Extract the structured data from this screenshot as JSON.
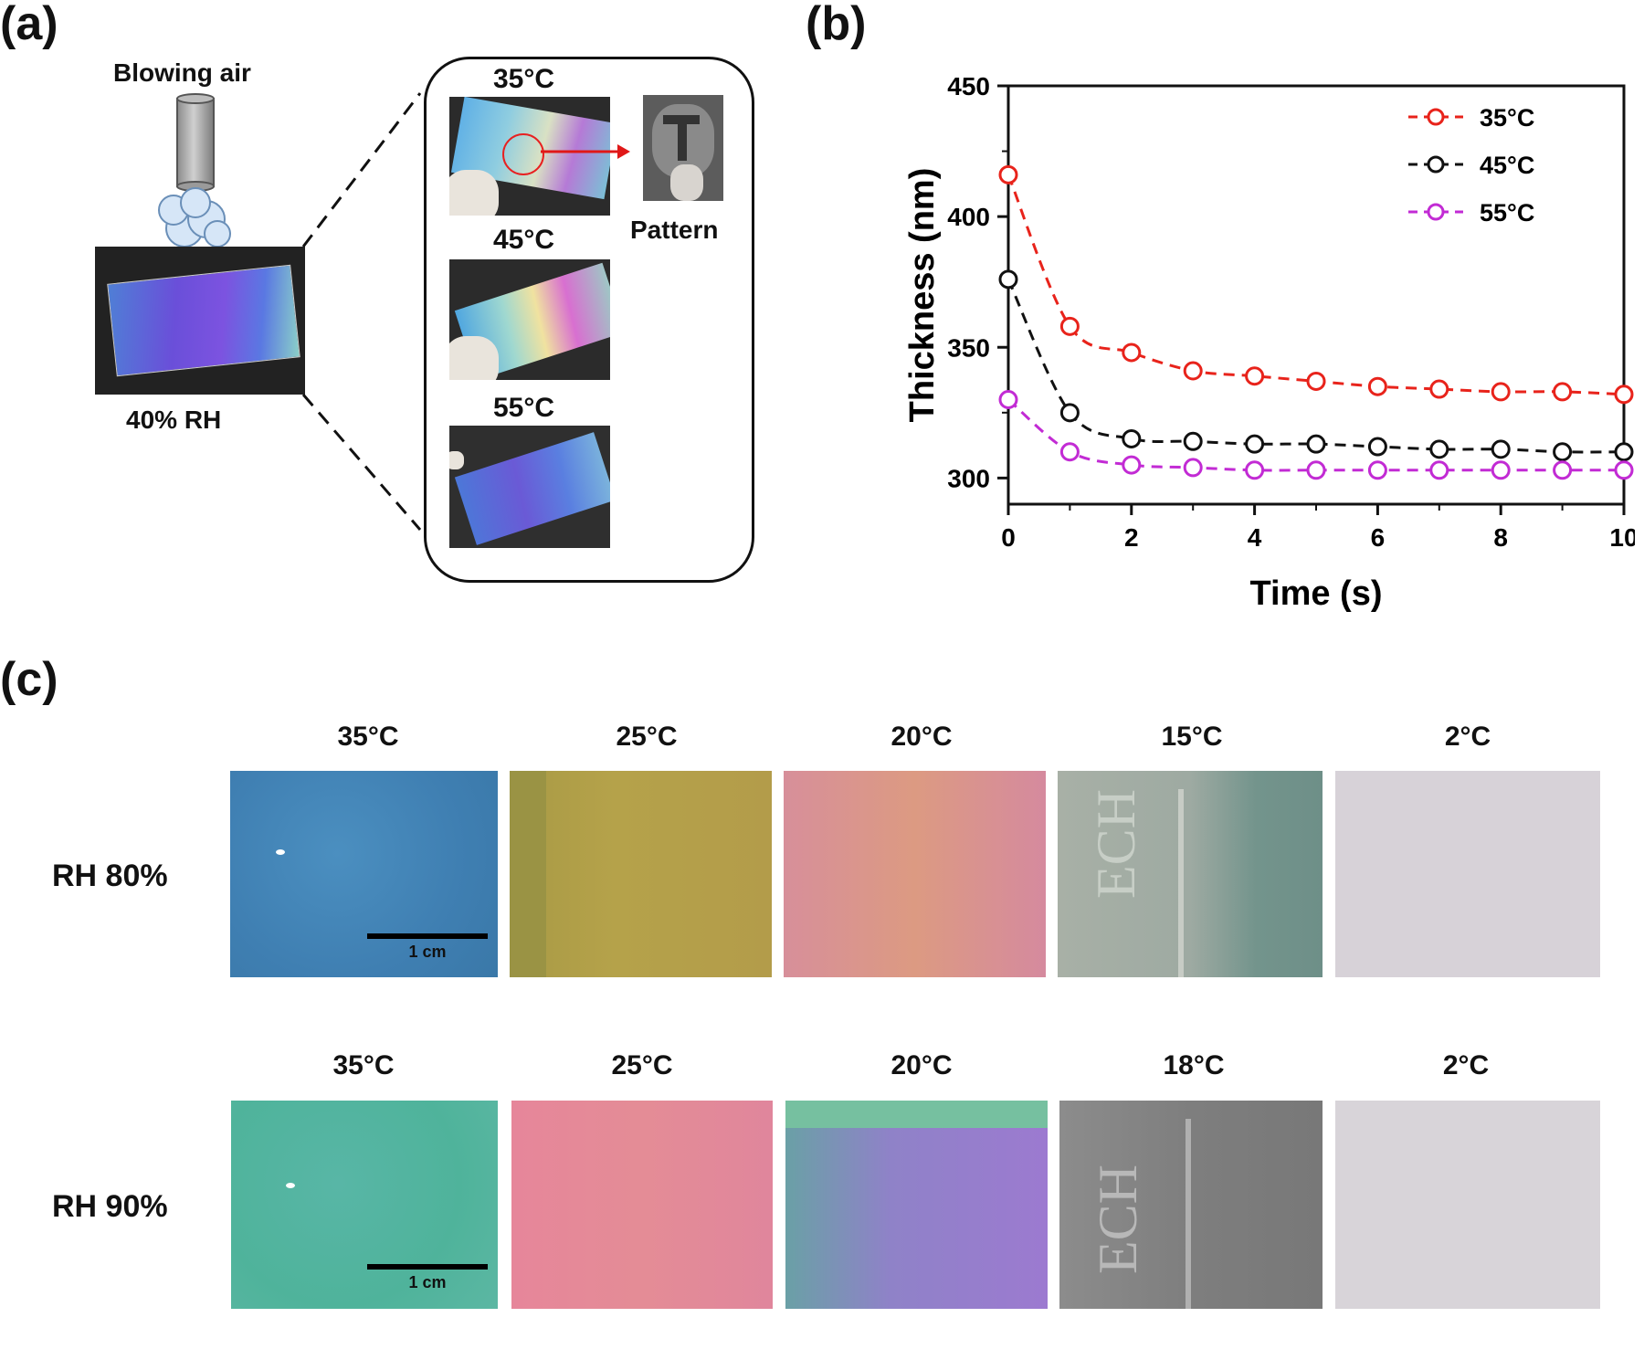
{
  "panel_a": {
    "label": "(a)",
    "blowing_air": "Blowing air",
    "rh_label": "40% RH",
    "temps": [
      "35°C",
      "45°C",
      "55°C"
    ],
    "pattern_label": "Pattern"
  },
  "panel_b": {
    "label": "(b)"
  },
  "panel_c": {
    "label": "(c)",
    "row1": {
      "rh": "RH 80%",
      "temps": [
        "35°C",
        "25°C",
        "20°C",
        "15°C",
        "2°C"
      ]
    },
    "row2": {
      "rh": "RH 90%",
      "temps": [
        "35°C",
        "25°C",
        "20°C",
        "18°C",
        "2°C"
      ]
    },
    "scale_bar": "1 cm"
  },
  "chart_data": {
    "type": "line",
    "xlabel": "Time (s)",
    "ylabel": "Thickness (nm)",
    "xlim": [
      0,
      10
    ],
    "ylim": [
      290,
      450
    ],
    "xticks": [
      0,
      2,
      4,
      6,
      8,
      10
    ],
    "yticks": [
      300,
      350,
      400,
      450
    ],
    "legend_position": "top-right",
    "x": [
      0,
      1,
      2,
      3,
      4,
      5,
      6,
      7,
      8,
      9,
      10
    ],
    "series": [
      {
        "name": "35°C",
        "color": "#e8231b",
        "values": [
          416,
          358,
          348,
          341,
          339,
          337,
          335,
          334,
          333,
          333,
          332
        ]
      },
      {
        "name": "45°C",
        "color": "#111111",
        "values": [
          376,
          325,
          315,
          314,
          313,
          313,
          312,
          311,
          311,
          310,
          310
        ]
      },
      {
        "name": "55°C",
        "color": "#c22bd4",
        "values": [
          330,
          310,
          305,
          304,
          303,
          303,
          303,
          303,
          303,
          303,
          303
        ]
      }
    ]
  }
}
